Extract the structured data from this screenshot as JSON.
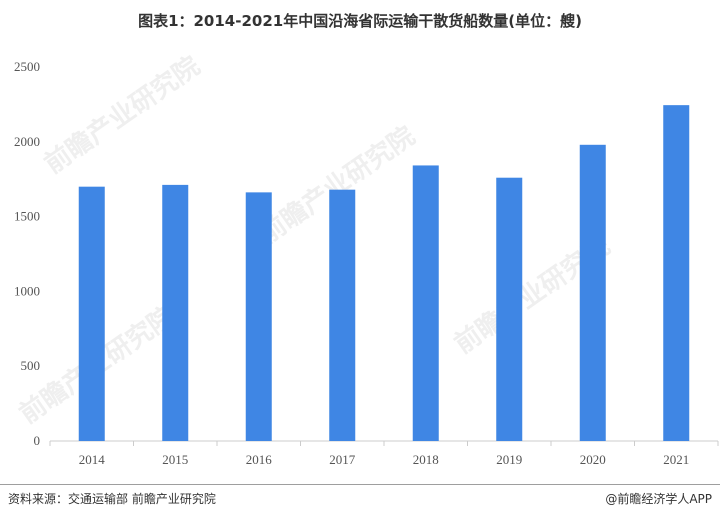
{
  "title": "图表1：2014-2021年中国沿海省际运输干散货船数量(单位：艘)",
  "source": "资料来源：交通运输部 前瞻产业研究院",
  "brand": "@前瞻经济学人APP",
  "watermark": "前瞻产业研究院",
  "colors": {
    "bar": "#3f86e4",
    "axis": "#cccccc"
  },
  "chart_data": {
    "type": "bar",
    "title": "图表1：2014-2021年中国沿海省际运输干散货船数量(单位：艘)",
    "categories": [
      "2014",
      "2015",
      "2016",
      "2017",
      "2018",
      "2019",
      "2020",
      "2021"
    ],
    "values": [
      1700,
      1712,
      1662,
      1680,
      1842,
      1760,
      1980,
      2245
    ],
    "yticks": [
      0,
      500,
      1000,
      1500,
      2000,
      2500
    ],
    "ylim": [
      0,
      2500
    ],
    "grid": false,
    "xlabel": "",
    "ylabel": ""
  }
}
